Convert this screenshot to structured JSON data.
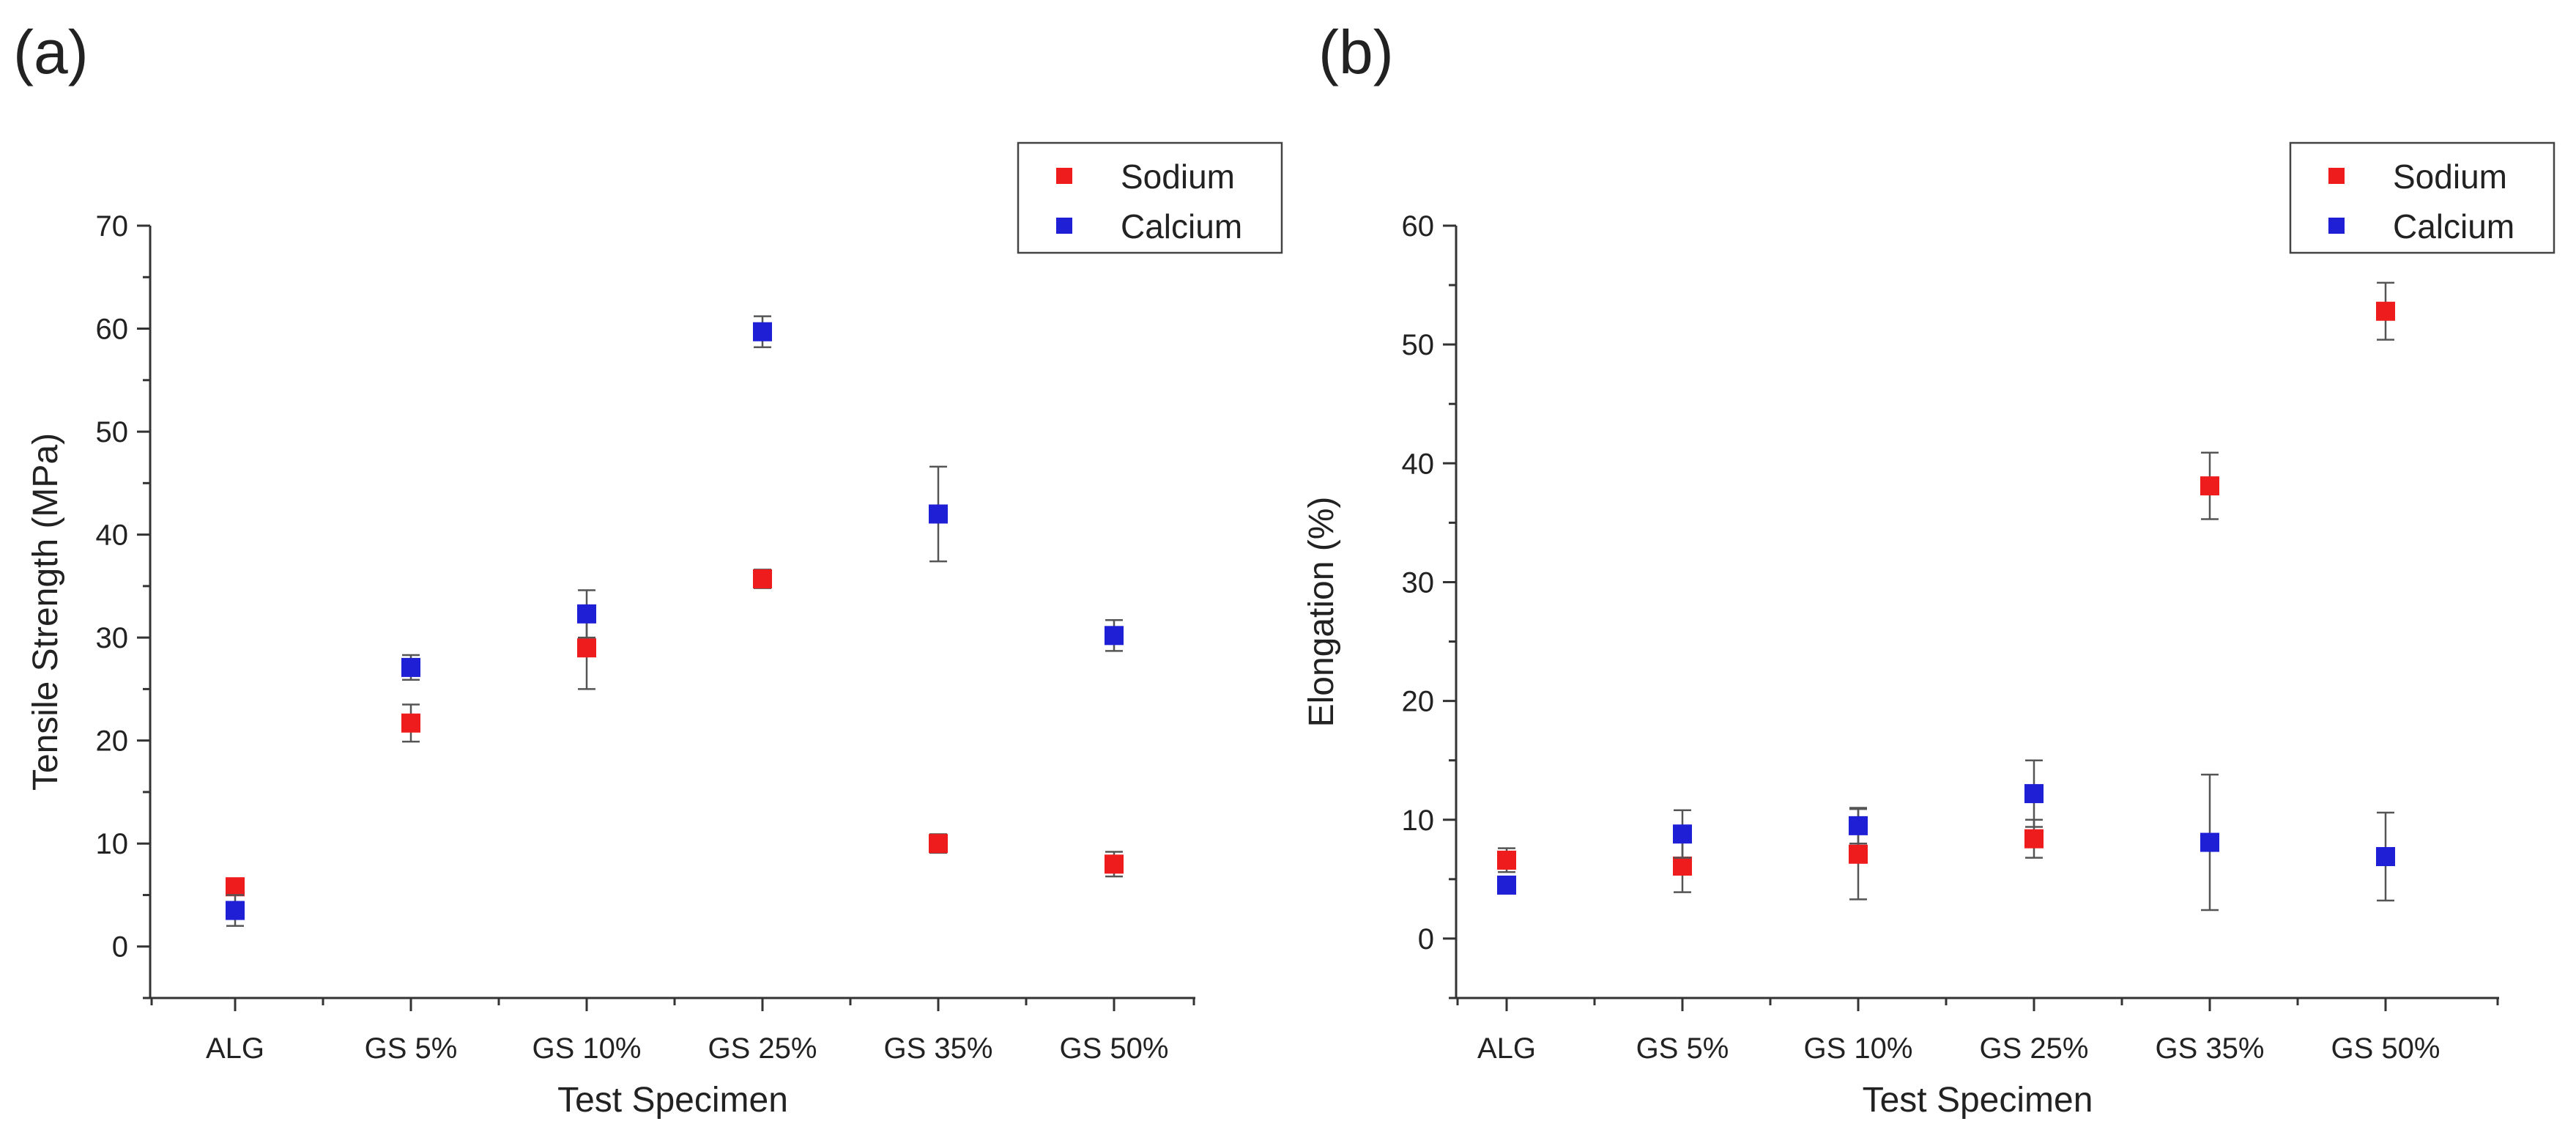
{
  "panels": [
    {
      "label": "(a)",
      "chart_data": {
        "type": "scatter",
        "title": "",
        "xlabel": "Test Specimen",
        "ylabel": "Tensile Strength (MPa)",
        "categories": [
          "ALG",
          "GS 5%",
          "GS 10%",
          "GS 25%",
          "GS 35%",
          "GS 50%"
        ],
        "ylim": [
          -5,
          70
        ],
        "yticks": [
          0,
          10,
          20,
          30,
          40,
          50,
          60,
          70
        ],
        "legend_position": "top-right",
        "series": [
          {
            "name": "Sodium",
            "color": "#ee1c1c",
            "values": [
              5.8,
              21.7,
              29.0,
              35.7,
              10.0,
              8.0
            ],
            "errors": [
              0.8,
              1.8,
              4.0,
              0.9,
              0.9,
              1.2
            ]
          },
          {
            "name": "Calcium",
            "color": "#1f1fd6",
            "values": [
              3.5,
              27.1,
              32.3,
              59.7,
              42.0,
              30.2
            ],
            "errors": [
              1.5,
              1.2,
              2.3,
              1.5,
              4.6,
              1.5
            ]
          }
        ]
      }
    },
    {
      "label": "(b)",
      "chart_data": {
        "type": "scatter",
        "title": "",
        "xlabel": "Test Specimen",
        "ylabel": "Elongation (%)",
        "categories": [
          "ALG",
          "GS 5%",
          "GS 10%",
          "GS 25%",
          "GS 35%",
          "GS 50%"
        ],
        "ylim": [
          -5,
          60
        ],
        "yticks": [
          0,
          10,
          20,
          30,
          40,
          50,
          60
        ],
        "legend_position": "top-right",
        "series": [
          {
            "name": "Sodium",
            "color": "#ee1c1c",
            "values": [
              6.6,
              6.1,
              7.1,
              8.4,
              38.1,
              52.8
            ],
            "errors": [
              1.0,
              2.2,
              3.8,
              1.6,
              2.8,
              2.4
            ]
          },
          {
            "name": "Calcium",
            "color": "#1f1fd6",
            "values": [
              4.5,
              8.8,
              9.5,
              12.2,
              8.1,
              6.9
            ],
            "errors": [
              0.5,
              2.0,
              1.5,
              2.8,
              5.7,
              3.7
            ]
          }
        ]
      }
    }
  ]
}
